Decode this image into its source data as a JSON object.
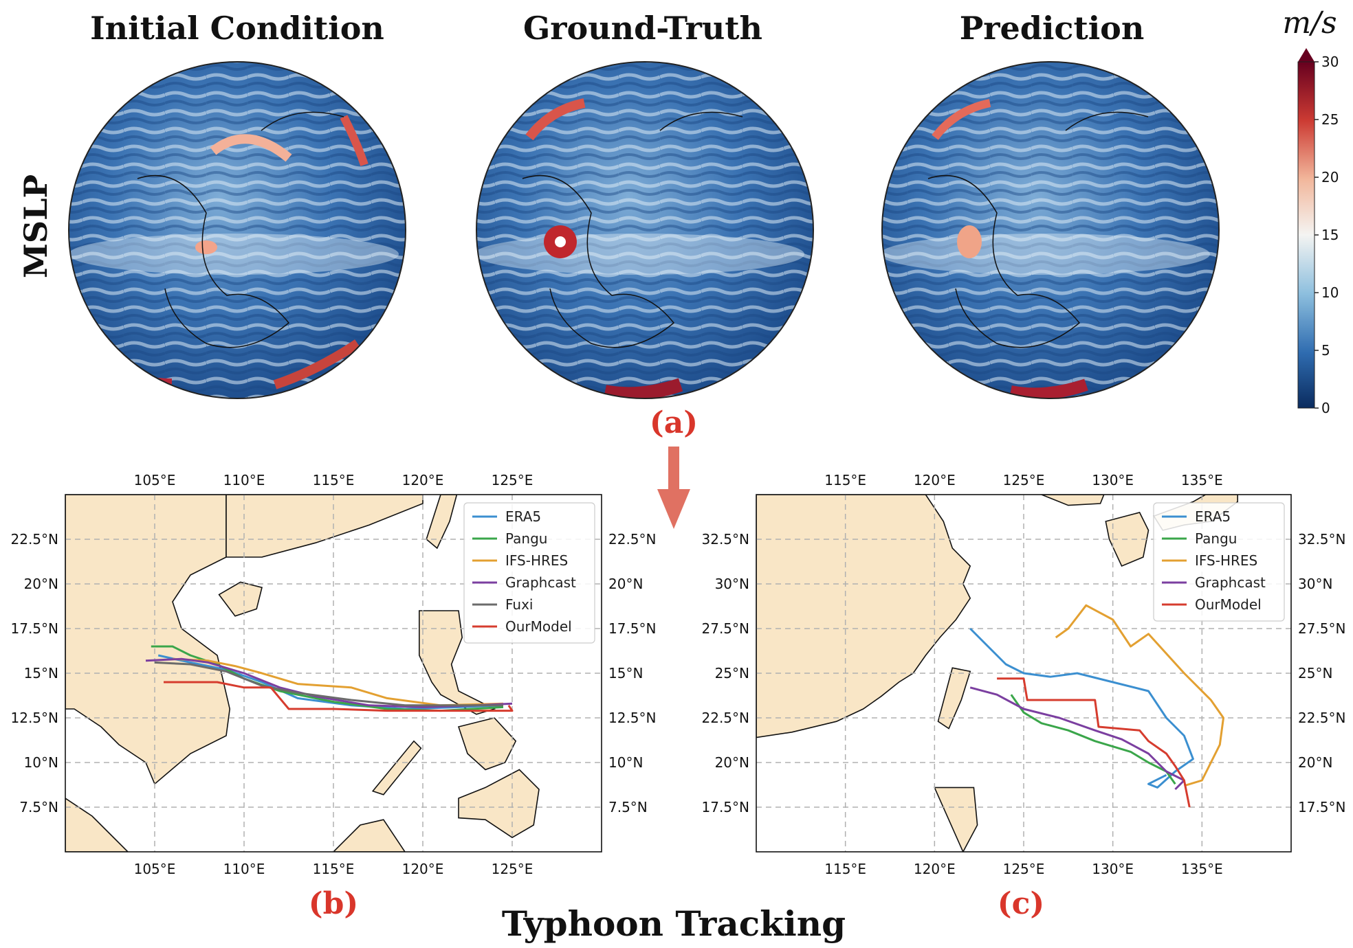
{
  "globe_titles": [
    "Initial Condition",
    "Ground-Truth",
    "Prediction"
  ],
  "row_label": "MSLP",
  "colorbar": {
    "unit": "m/s",
    "ticks": [
      0,
      5,
      10,
      15,
      20,
      25,
      30
    ],
    "colors": [
      "#0a2b5e",
      "#2f6cb0",
      "#8dbfde",
      "#f4f4f2",
      "#f2b79c",
      "#cc3b33",
      "#67001f"
    ]
  },
  "panel_labels": {
    "a": "(a)",
    "b": "(b)",
    "c": "(c)"
  },
  "bottom_title": "Typhoon Tracking",
  "colors": {
    "land": "#f9e6c6",
    "river": "#9fb8d9",
    "grid": "#b0b0b0",
    "arrow": "#e07162",
    "panel_letter": "#d9362b"
  },
  "chart_data": [
    {
      "type": "line",
      "panel": "(b)",
      "xlim": [
        100,
        130
      ],
      "ylim": [
        5,
        25
      ],
      "xticks": [
        105,
        110,
        115,
        120,
        125
      ],
      "yticks": [
        7.5,
        10,
        12.5,
        15,
        17.5,
        20,
        22.5
      ],
      "xtick_labels": [
        "105°E",
        "110°E",
        "115°E",
        "120°E",
        "125°E"
      ],
      "ytick_labels": [
        "7.5°N",
        "10°N",
        "12.5°N",
        "15°N",
        "17.5°N",
        "20°N",
        "22.5°N"
      ],
      "legend": "top-right",
      "grid": true,
      "series": [
        {
          "name": "ERA5",
          "color": "#3b8fd0",
          "points": [
            [
              105.2,
              16.0
            ],
            [
              107,
              15.6
            ],
            [
              109,
              15.2
            ],
            [
              111,
              14.5
            ],
            [
              113,
              13.6
            ],
            [
              116,
              13.2
            ],
            [
              119,
              13.0
            ],
            [
              122,
              13.1
            ],
            [
              124.5,
              13.2
            ]
          ]
        },
        {
          "name": "Pangu",
          "color": "#3aa64a",
          "points": [
            [
              104.8,
              16.5
            ],
            [
              106,
              16.5
            ],
            [
              107,
              16.0
            ],
            [
              108.5,
              15.5
            ],
            [
              110,
              14.7
            ],
            [
              112,
              14.0
            ],
            [
              115,
              13.4
            ],
            [
              118,
              13.0
            ],
            [
              121,
              12.9
            ],
            [
              124.5,
              13.1
            ]
          ]
        },
        {
          "name": "IFS-HRES",
          "color": "#e3a031",
          "points": [
            [
              106,
              15.8
            ],
            [
              108,
              15.7
            ],
            [
              109.5,
              15.4
            ],
            [
              111,
              15.0
            ],
            [
              113,
              14.4
            ],
            [
              116,
              14.2
            ],
            [
              118,
              13.6
            ],
            [
              121,
              13.2
            ],
            [
              124.5,
              13.3
            ]
          ]
        },
        {
          "name": "Graphcast",
          "color": "#7b3fa0",
          "points": [
            [
              104.5,
              15.7
            ],
            [
              106.5,
              15.8
            ],
            [
              108,
              15.6
            ],
            [
              110,
              15.0
            ],
            [
              112,
              14.2
            ],
            [
              114,
              13.7
            ],
            [
              117,
              13.2
            ],
            [
              120,
              13.1
            ],
            [
              123,
              13.2
            ],
            [
              125,
              13.3
            ]
          ]
        },
        {
          "name": "Fuxi",
          "color": "#6b6b6b",
          "points": [
            [
              105,
              15.6
            ],
            [
              107,
              15.5
            ],
            [
              109,
              15.1
            ],
            [
              111,
              14.3
            ],
            [
              113,
              13.9
            ],
            [
              116,
              13.5
            ],
            [
              119,
              13.2
            ],
            [
              122,
              13.2
            ],
            [
              124.5,
              13.2
            ]
          ]
        },
        {
          "name": "OurModel",
          "color": "#d63c2e",
          "points": [
            [
              105.5,
              14.5
            ],
            [
              108.5,
              14.5
            ],
            [
              110,
              14.2
            ],
            [
              111.5,
              14.2
            ],
            [
              112.5,
              13.0
            ],
            [
              115,
              13.0
            ],
            [
              118,
              12.9
            ],
            [
              121,
              12.9
            ],
            [
              124,
              12.9
            ],
            [
              125,
              12.9
            ],
            [
              124.8,
              13.2
            ]
          ]
        }
      ]
    },
    {
      "type": "line",
      "panel": "(c)",
      "xlim": [
        110,
        140
      ],
      "ylim": [
        15,
        35
      ],
      "xticks": [
        115,
        120,
        125,
        130,
        135
      ],
      "yticks": [
        17.5,
        20,
        22.5,
        25,
        27.5,
        30,
        32.5
      ],
      "xtick_labels": [
        "115°E",
        "120°E",
        "125°E",
        "130°E",
        "135°E"
      ],
      "ytick_labels": [
        "17.5°N",
        "20°N",
        "22.5°N",
        "25°N",
        "27.5°N",
        "30°N",
        "32.5°N"
      ],
      "legend": "top-right",
      "grid": true,
      "series": [
        {
          "name": "ERA5",
          "color": "#3b8fd0",
          "points": [
            [
              122,
              27.5
            ],
            [
              123,
              26.5
            ],
            [
              124,
              25.5
            ],
            [
              125,
              25.0
            ],
            [
              126.5,
              24.8
            ],
            [
              128,
              25.0
            ],
            [
              130,
              24.5
            ],
            [
              132,
              24.0
            ],
            [
              133,
              22.5
            ],
            [
              134,
              21.5
            ],
            [
              134.5,
              20.2
            ],
            [
              133.5,
              19.5
            ],
            [
              132.5,
              18.6
            ],
            [
              132,
              18.8
            ],
            [
              133,
              19.3
            ]
          ]
        },
        {
          "name": "Pangu",
          "color": "#3aa64a",
          "points": [
            [
              124.3,
              23.8
            ],
            [
              125,
              22.8
            ],
            [
              126,
              22.2
            ],
            [
              127.5,
              21.8
            ],
            [
              129,
              21.2
            ],
            [
              131,
              20.6
            ],
            [
              132,
              20.0
            ],
            [
              133,
              19.5
            ],
            [
              133.5,
              18.8
            ]
          ]
        },
        {
          "name": "IFS-HRES",
          "color": "#e3a031",
          "points": [
            [
              126.8,
              27.0
            ],
            [
              127.5,
              27.5
            ],
            [
              128.5,
              28.8
            ],
            [
              130,
              28.0
            ],
            [
              131,
              26.5
            ],
            [
              132,
              27.2
            ],
            [
              134,
              25.0
            ],
            [
              135.5,
              23.5
            ],
            [
              136.2,
              22.5
            ],
            [
              136,
              21.0
            ],
            [
              135.5,
              20.0
            ],
            [
              135,
              19.0
            ],
            [
              134,
              18.7
            ]
          ]
        },
        {
          "name": "Graphcast",
          "color": "#7b3fa0",
          "points": [
            [
              122,
              24.2
            ],
            [
              123.5,
              23.8
            ],
            [
              125,
              23.0
            ],
            [
              127,
              22.5
            ],
            [
              129,
              21.8
            ],
            [
              130.5,
              21.3
            ],
            [
              132,
              20.5
            ],
            [
              133,
              19.5
            ],
            [
              134,
              19.0
            ],
            [
              133.5,
              18.5
            ]
          ]
        },
        {
          "name": "OurModel",
          "color": "#d63c2e",
          "points": [
            [
              123.5,
              24.7
            ],
            [
              125,
              24.7
            ],
            [
              125.2,
              23.5
            ],
            [
              129,
              23.5
            ],
            [
              129.2,
              22.0
            ],
            [
              131.5,
              21.8
            ],
            [
              132,
              21.2
            ],
            [
              133,
              20.5
            ],
            [
              133.5,
              19.8
            ],
            [
              134,
              19.0
            ],
            [
              134.3,
              17.5
            ]
          ]
        }
      ]
    }
  ]
}
